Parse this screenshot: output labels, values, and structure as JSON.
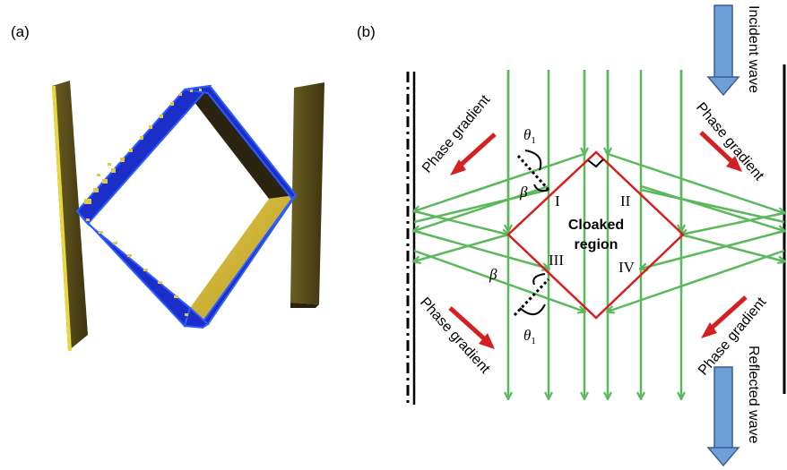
{
  "panels": {
    "a_label": "(a)",
    "b_label": "(b)"
  },
  "labels": {
    "incident": "Incident wave",
    "reflected": "Reflected wave",
    "phase_gradient": "Phase gradient",
    "cloaked_line1": "Cloaked",
    "cloaked_line2": "region",
    "theta": "θ",
    "theta_sub": "1",
    "beta": "β",
    "region_I": "I",
    "region_II": "II",
    "region_III": "III",
    "region_IV": "IV"
  },
  "colors": {
    "ray": "#5cb85c",
    "cloak_border": "#d42020",
    "phase_arrow": "#d42020",
    "big_arrow_fill": "#6e9fd8",
    "big_arrow_stroke": "#3c5e8c",
    "panel_blue": "#1c2ec8",
    "panel_gold": "#c8b43a",
    "panel_olive": "#5a4e18"
  }
}
